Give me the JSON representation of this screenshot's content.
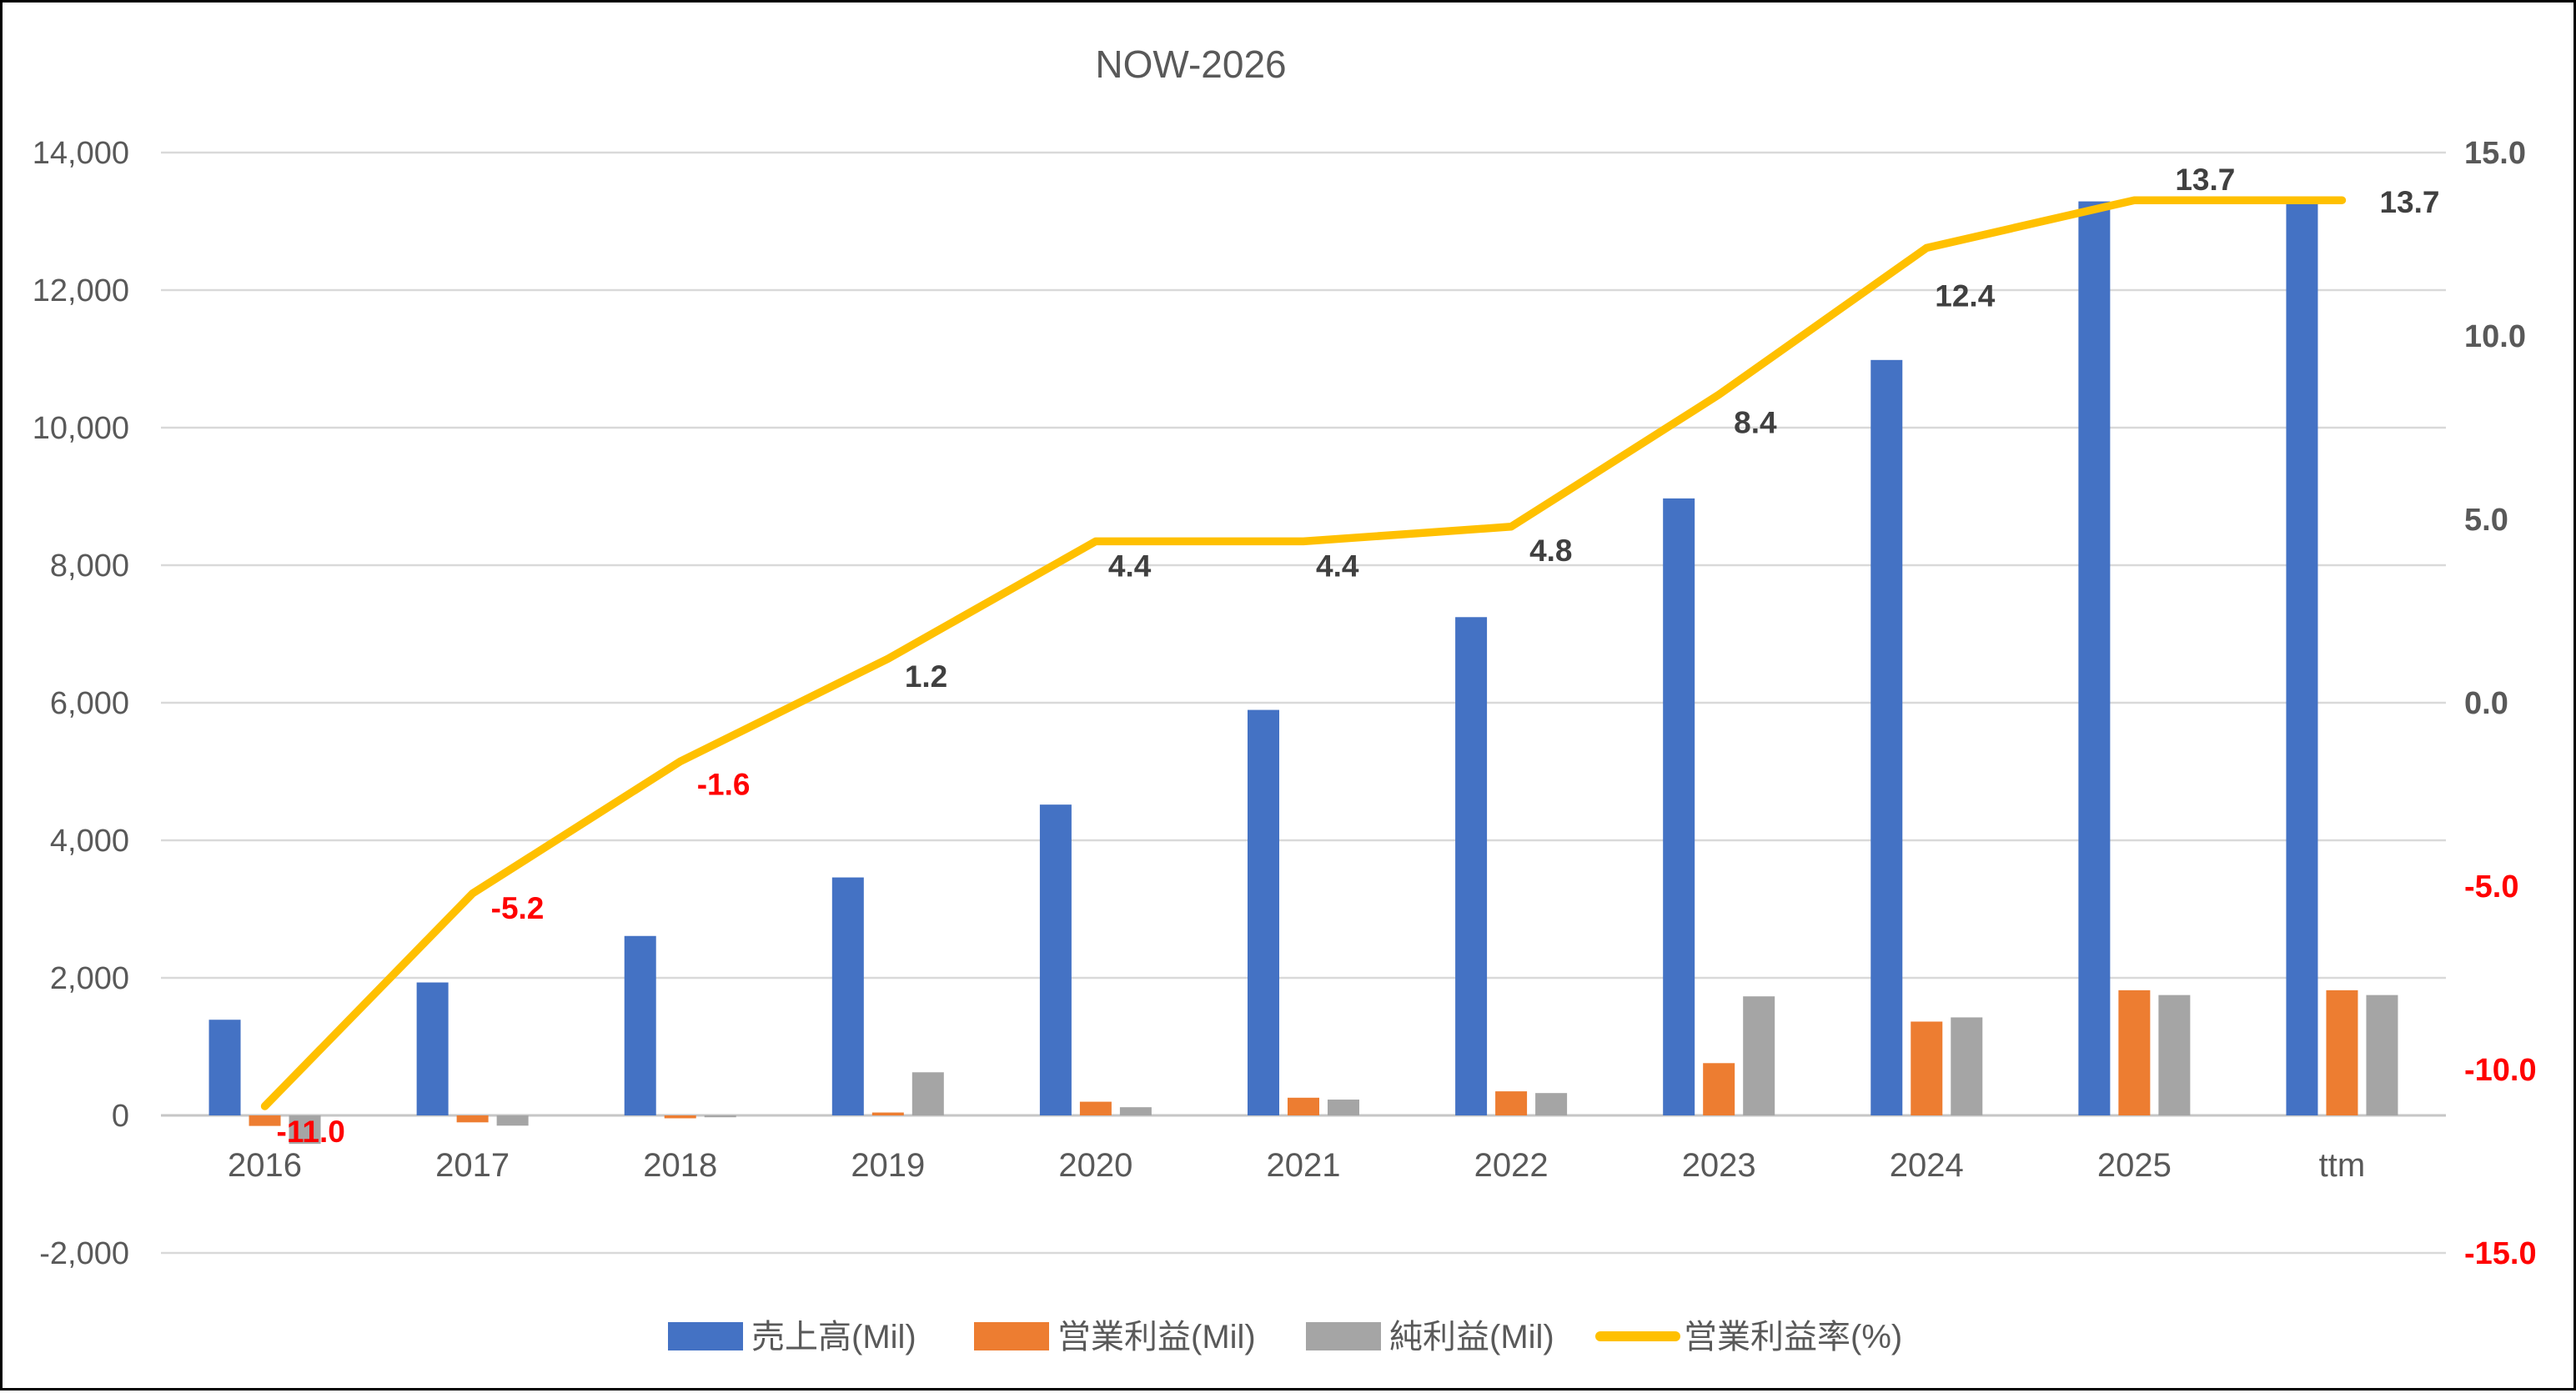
{
  "title": "NOW-2026",
  "chart_data": {
    "type": "combo-bar-line",
    "title": "NOW-2026",
    "categories": [
      "2016",
      "2017",
      "2018",
      "2019",
      "2020",
      "2021",
      "2022",
      "2023",
      "2024",
      "2025",
      "ttm"
    ],
    "series": [
      {
        "name": "売上高(Mil)",
        "type": "bar",
        "axis": "left",
        "color": "#4472C4",
        "values": [
          1391,
          1933,
          2609,
          3460,
          4519,
          5896,
          7245,
          8971,
          10984,
          13290,
          13290
        ]
      },
      {
        "name": "営業利益(Mil)",
        "type": "bar",
        "axis": "left",
        "color": "#ED7D31",
        "values": [
          -153,
          -101,
          -42,
          42,
          199,
          257,
          350,
          760,
          1364,
          1820,
          1820
        ]
      },
      {
        "name": "純利益(Mil)",
        "type": "bar",
        "axis": "left",
        "color": "#A5A5A5",
        "values": [
          -414,
          -149,
          -27,
          627,
          119,
          230,
          325,
          1731,
          1425,
          1750,
          1750
        ]
      },
      {
        "name": "営業利益率(%)",
        "type": "line",
        "axis": "right",
        "color": "#FFC000",
        "values": [
          -11.0,
          -5.2,
          -1.6,
          1.2,
          4.4,
          4.4,
          4.8,
          8.4,
          12.4,
          13.7,
          13.7
        ],
        "point_labels": [
          "-11.0",
          "-5.2",
          "-1.6",
          "1.2",
          "4.4",
          "4.4",
          "4.8",
          "8.4",
          "12.4",
          "13.7",
          "13.7"
        ]
      }
    ],
    "left_axis": {
      "min": -2000,
      "max": 14000,
      "step": 2000,
      "tick_labels": [
        "14,000",
        "12,000",
        "10,000",
        "8,000",
        "6,000",
        "4,000",
        "2,000",
        "0",
        "-2,000"
      ],
      "tick_values": [
        14000,
        12000,
        10000,
        8000,
        6000,
        4000,
        2000,
        0,
        -2000
      ]
    },
    "right_axis": {
      "min": -15,
      "max": 15,
      "step": 5,
      "tick_labels": [
        "15.0",
        "10.0",
        "5.0",
        "0.0",
        "-5.0",
        "-10.0",
        "-15.0"
      ],
      "tick_values": [
        15,
        10,
        5,
        0,
        -5,
        -10,
        -15
      ]
    },
    "legend": [
      {
        "label": "売上高(Mil)",
        "color": "#4472C4",
        "marker": "rect"
      },
      {
        "label": "営業利益(Mil)",
        "color": "#ED7D31",
        "marker": "rect"
      },
      {
        "label": "純利益(Mil)",
        "color": "#A5A5A5",
        "marker": "rect"
      },
      {
        "label": "営業利益率(%)",
        "color": "#FFC000",
        "marker": "line"
      }
    ],
    "grid": true,
    "legend_position": "bottom",
    "colors": {
      "bar_revenue": "#4472C4",
      "bar_operating_income": "#ED7D31",
      "bar_net_income": "#A5A5A5",
      "line_margin": "#FFC000",
      "negative_label": "#FF0000",
      "positive_label": "#404040",
      "axis_tick": "#595959",
      "gridline": "#D9D9D9",
      "zero_line": "#C6C6C6",
      "title": "#595959"
    }
  }
}
